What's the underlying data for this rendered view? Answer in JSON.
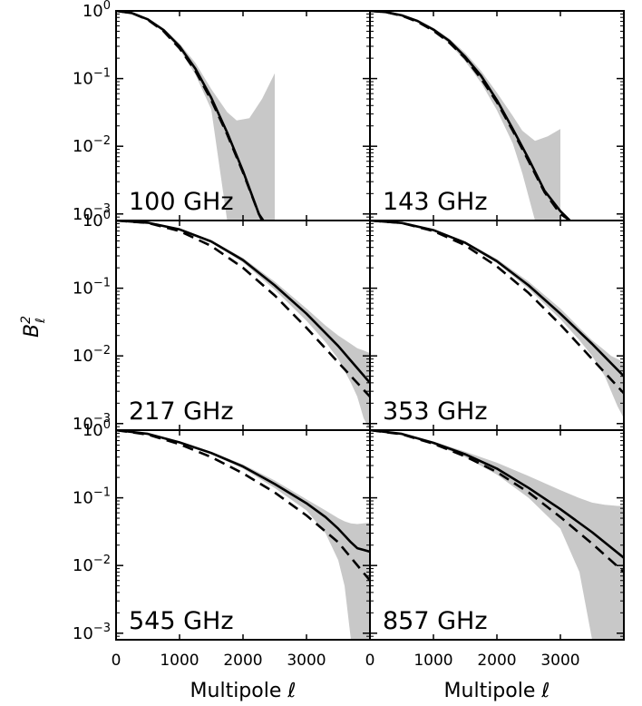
{
  "figure": {
    "ylabel_base": "B",
    "ylabel_sup": "2",
    "ylabel_sub": "ℓ",
    "xlabel_left": "Multipole ℓ",
    "xlabel_right": "Multipole ℓ"
  },
  "chart_data": [
    {
      "type": "line",
      "panel": "100 GHz",
      "label": "100 GHz",
      "yscale": "log",
      "xlim": [
        0,
        4000
      ],
      "ylim": [
        0.0008,
        1
      ],
      "xticks": [
        0,
        1000,
        2000,
        3000
      ],
      "yticks": [
        {
          "value": 1,
          "label": "10^0"
        },
        {
          "value": 0.1,
          "label": "10^-1"
        },
        {
          "value": 0.01,
          "label": "10^-2"
        },
        {
          "value": 0.001,
          "label": "10^-3"
        }
      ],
      "series": [
        {
          "style": "solid",
          "x": [
            0,
            250,
            500,
            750,
            1000,
            1250,
            1500,
            1750,
            2000,
            2250,
            2300
          ],
          "y": [
            1.0,
            0.93,
            0.75,
            0.52,
            0.3,
            0.14,
            0.052,
            0.016,
            0.0043,
            0.001,
            0.0008
          ]
        },
        {
          "style": "dashed",
          "x": [
            0,
            250,
            500,
            750,
            1000,
            1250,
            1500,
            1750,
            2000,
            2250,
            2320
          ],
          "y": [
            1.0,
            0.93,
            0.74,
            0.5,
            0.28,
            0.13,
            0.048,
            0.015,
            0.0041,
            0.001,
            0.0008
          ]
        }
      ],
      "band": {
        "x": [
          0,
          250,
          500,
          750,
          1000,
          1250,
          1500,
          1750,
          1900,
          2100,
          2300,
          2500
        ],
        "upper": [
          1.0,
          0.94,
          0.77,
          0.55,
          0.33,
          0.17,
          0.07,
          0.032,
          0.024,
          0.026,
          0.05,
          0.12
        ],
        "lower": [
          1.0,
          0.92,
          0.73,
          0.49,
          0.27,
          0.115,
          0.035,
          0.0008,
          0.0008,
          0.0008,
          0.0008,
          0.0008
        ]
      }
    },
    {
      "type": "line",
      "panel": "143 GHz",
      "label": "143 GHz",
      "yscale": "log",
      "xlim": [
        0,
        4000
      ],
      "ylim": [
        0.0008,
        1
      ],
      "xticks": [
        0,
        1000,
        2000,
        3000
      ],
      "yticks": [
        {
          "value": 1,
          "label": "10^0"
        },
        {
          "value": 0.1,
          "label": "10^-1"
        },
        {
          "value": 0.01,
          "label": "10^-2"
        },
        {
          "value": 0.001,
          "label": "10^-3"
        }
      ],
      "series": [
        {
          "style": "solid",
          "x": [
            0,
            250,
            500,
            750,
            1000,
            1250,
            1500,
            1750,
            2000,
            2250,
            2500,
            2750,
            3000,
            3150
          ],
          "y": [
            1.0,
            0.96,
            0.86,
            0.71,
            0.53,
            0.36,
            0.21,
            0.11,
            0.048,
            0.018,
            0.0065,
            0.0022,
            0.0011,
            0.0008
          ]
        },
        {
          "style": "dashed",
          "x": [
            0,
            250,
            500,
            750,
            1000,
            1250,
            1500,
            1750,
            2000,
            2250,
            2500,
            2750,
            3000,
            3150
          ],
          "y": [
            1.0,
            0.96,
            0.85,
            0.69,
            0.51,
            0.34,
            0.2,
            0.1,
            0.045,
            0.017,
            0.006,
            0.0021,
            0.001,
            0.0008
          ]
        }
      ],
      "band": {
        "x": [
          0,
          250,
          500,
          750,
          1000,
          1250,
          1500,
          1750,
          2000,
          2250,
          2400,
          2600,
          2800,
          3000
        ],
        "upper": [
          1.0,
          0.97,
          0.88,
          0.73,
          0.56,
          0.39,
          0.24,
          0.13,
          0.062,
          0.028,
          0.017,
          0.012,
          0.014,
          0.018
        ],
        "lower": [
          1.0,
          0.95,
          0.84,
          0.69,
          0.5,
          0.33,
          0.18,
          0.087,
          0.034,
          0.011,
          0.004,
          0.0008,
          0.0008,
          0.0008
        ]
      }
    },
    {
      "type": "line",
      "panel": "217 GHz",
      "label": "217 GHz",
      "yscale": "log",
      "xlim": [
        0,
        4000
      ],
      "ylim": [
        0.0008,
        1
      ],
      "xticks": [
        0,
        1000,
        2000,
        3000
      ],
      "yticks": [
        {
          "value": 1,
          "label": "10^0"
        },
        {
          "value": 0.1,
          "label": "10^-1"
        },
        {
          "value": 0.01,
          "label": "10^-2"
        },
        {
          "value": 0.001,
          "label": "10^-3"
        }
      ],
      "series": [
        {
          "style": "solid",
          "x": [
            0,
            500,
            1000,
            1500,
            2000,
            2500,
            3000,
            3500,
            4000
          ],
          "y": [
            1.0,
            0.93,
            0.74,
            0.49,
            0.26,
            0.11,
            0.042,
            0.014,
            0.004
          ]
        },
        {
          "style": "dashed",
          "x": [
            0,
            500,
            1000,
            1500,
            2000,
            2500,
            3000,
            3500,
            4000
          ],
          "y": [
            1.0,
            0.92,
            0.7,
            0.42,
            0.2,
            0.078,
            0.026,
            0.008,
            0.0025
          ]
        }
      ],
      "band": {
        "x": [
          0,
          500,
          1000,
          1500,
          2000,
          2500,
          3000,
          3300,
          3500,
          3700,
          3800,
          3900,
          4000
        ],
        "upper": [
          1.0,
          0.94,
          0.76,
          0.51,
          0.28,
          0.125,
          0.05,
          0.028,
          0.02,
          0.015,
          0.013,
          0.012,
          0.011
        ],
        "lower": [
          1.0,
          0.92,
          0.72,
          0.47,
          0.24,
          0.095,
          0.033,
          0.016,
          0.009,
          0.004,
          0.0025,
          0.0012,
          0.0008
        ]
      }
    },
    {
      "type": "line",
      "panel": "353 GHz",
      "label": "353 GHz",
      "yscale": "log",
      "xlim": [
        0,
        4000
      ],
      "ylim": [
        0.0008,
        1
      ],
      "xticks": [
        0,
        1000,
        2000,
        3000
      ],
      "yticks": [
        {
          "value": 1,
          "label": "10^0"
        },
        {
          "value": 0.1,
          "label": "10^-1"
        },
        {
          "value": 0.01,
          "label": "10^-2"
        },
        {
          "value": 0.001,
          "label": "10^-3"
        }
      ],
      "series": [
        {
          "style": "solid",
          "x": [
            0,
            500,
            1000,
            1500,
            2000,
            2500,
            3000,
            3500,
            4000
          ],
          "y": [
            1.0,
            0.92,
            0.72,
            0.47,
            0.25,
            0.11,
            0.042,
            0.015,
            0.005
          ]
        },
        {
          "style": "dashed",
          "x": [
            0,
            500,
            1000,
            1500,
            2000,
            2500,
            3000,
            3500,
            4000
          ],
          "y": [
            1.0,
            0.92,
            0.7,
            0.43,
            0.21,
            0.085,
            0.029,
            0.009,
            0.0028
          ]
        }
      ],
      "band": {
        "x": [
          0,
          500,
          1000,
          1500,
          2000,
          2500,
          3000,
          3300,
          3500,
          3700,
          3800,
          3900,
          4000
        ],
        "upper": [
          1.0,
          0.93,
          0.74,
          0.49,
          0.27,
          0.125,
          0.05,
          0.026,
          0.017,
          0.012,
          0.01,
          0.009,
          0.008
        ],
        "lower": [
          1.0,
          0.91,
          0.7,
          0.45,
          0.235,
          0.098,
          0.035,
          0.017,
          0.01,
          0.005,
          0.003,
          0.0018,
          0.0012
        ]
      }
    },
    {
      "type": "line",
      "panel": "545 GHz",
      "label": "545 GHz",
      "yscale": "log",
      "xlim": [
        0,
        4000
      ],
      "ylim": [
        0.0008,
        1
      ],
      "xticks": [
        0,
        1000,
        2000,
        3000
      ],
      "yticks": [
        {
          "value": 1,
          "label": "10^0"
        },
        {
          "value": 0.1,
          "label": "10^-1"
        },
        {
          "value": 0.01,
          "label": "10^-2"
        },
        {
          "value": 0.001,
          "label": "10^-3"
        }
      ],
      "series": [
        {
          "style": "solid",
          "x": [
            0,
            500,
            1000,
            1500,
            2000,
            2500,
            3000,
            3300,
            3500,
            3700,
            3800,
            3900,
            4000
          ],
          "y": [
            1.0,
            0.88,
            0.66,
            0.46,
            0.29,
            0.16,
            0.083,
            0.052,
            0.035,
            0.022,
            0.018,
            0.017,
            0.016
          ]
        },
        {
          "style": "dashed",
          "x": [
            0,
            500,
            1000,
            1500,
            2000,
            2500,
            3000,
            3500,
            4000
          ],
          "y": [
            1.0,
            0.86,
            0.62,
            0.4,
            0.23,
            0.12,
            0.055,
            0.022,
            0.006
          ]
        }
      ],
      "band": {
        "x": [
          0,
          500,
          1000,
          1500,
          2000,
          2500,
          3000,
          3300,
          3500,
          3600,
          3700,
          3800,
          3900,
          4000
        ],
        "upper": [
          1.0,
          0.89,
          0.68,
          0.48,
          0.31,
          0.18,
          0.095,
          0.065,
          0.05,
          0.045,
          0.042,
          0.041,
          0.042,
          0.043
        ],
        "lower": [
          1.0,
          0.87,
          0.64,
          0.44,
          0.27,
          0.14,
          0.065,
          0.03,
          0.012,
          0.005,
          0.0008,
          0.0008,
          0.0008,
          0.0008
        ]
      }
    },
    {
      "type": "line",
      "panel": "857 GHz",
      "label": "857 GHz",
      "yscale": "log",
      "xlim": [
        0,
        4000
      ],
      "ylim": [
        0.0008,
        1
      ],
      "xticks": [
        0,
        1000,
        2000,
        3000
      ],
      "yticks": [
        {
          "value": 1,
          "label": "10^0"
        },
        {
          "value": 0.1,
          "label": "10^-1"
        },
        {
          "value": 0.01,
          "label": "10^-2"
        },
        {
          "value": 0.001,
          "label": "10^-3"
        }
      ],
      "series": [
        {
          "style": "solid",
          "x": [
            0,
            500,
            1000,
            1500,
            2000,
            2500,
            3000,
            3500,
            4000
          ],
          "y": [
            1.0,
            0.88,
            0.65,
            0.44,
            0.27,
            0.14,
            0.068,
            0.031,
            0.013
          ]
        },
        {
          "style": "dashed",
          "x": [
            0,
            500,
            1000,
            1500,
            2000,
            2500,
            3000,
            3500,
            4000
          ],
          "y": [
            1.0,
            0.87,
            0.63,
            0.41,
            0.24,
            0.12,
            0.052,
            0.021,
            0.008
          ]
        }
      ],
      "band": {
        "x": [
          0,
          500,
          1000,
          1500,
          2000,
          2500,
          3000,
          3300,
          3500,
          3700,
          3900,
          4000
        ],
        "upper": [
          1.0,
          0.89,
          0.68,
          0.48,
          0.33,
          0.21,
          0.13,
          0.099,
          0.085,
          0.079,
          0.076,
          0.075
        ],
        "lower": [
          1.0,
          0.87,
          0.62,
          0.4,
          0.22,
          0.1,
          0.035,
          0.008,
          0.0008,
          0.0008,
          0.0008,
          0.0008
        ]
      }
    }
  ]
}
